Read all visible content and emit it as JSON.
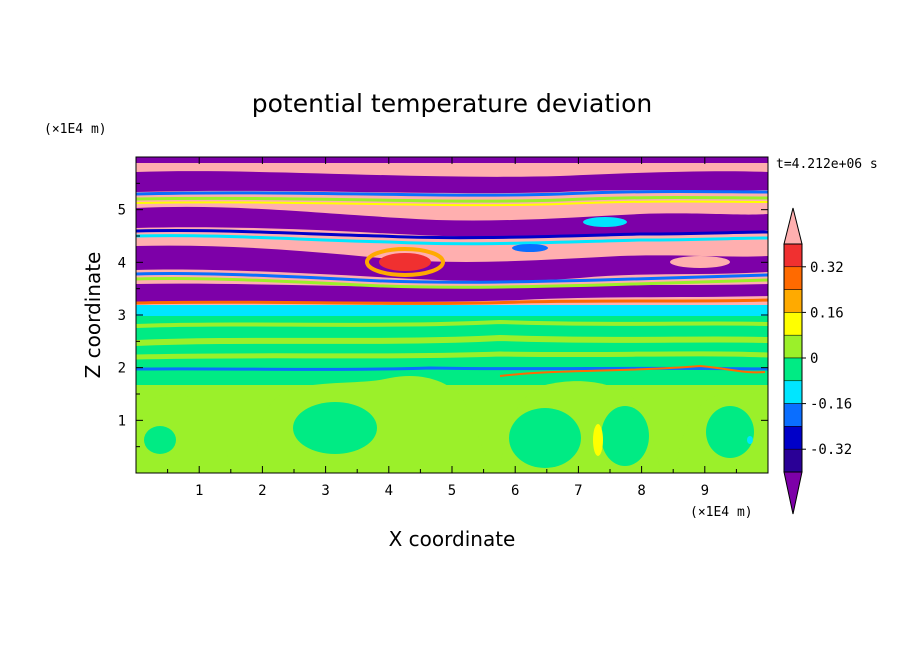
{
  "chart_data": {
    "type": "heatmap",
    "title": "potential temperature deviation",
    "xlabel": "X coordinate",
    "ylabel": "Z coordinate",
    "x_unit": "(×1E4 m)",
    "y_unit": "(×1E4 m)",
    "time_label": "t=4.212e+06 s",
    "xlim": [
      0,
      10
    ],
    "ylim": [
      0,
      6
    ],
    "x_ticks": [
      "1",
      "2",
      "3",
      "4",
      "5",
      "6",
      "7",
      "8",
      "9"
    ],
    "y_ticks": [
      "1",
      "2",
      "3",
      "4",
      "5"
    ],
    "colorbar": {
      "labels": [
        "0.32",
        "0.16",
        "0",
        "-0.16",
        "-0.32"
      ],
      "levels": [
        -0.4,
        -0.32,
        -0.24,
        -0.16,
        -0.08,
        0,
        0.08,
        0.16,
        0.24,
        0.32,
        0.4
      ],
      "colors": [
        "#ffafaf",
        "#f03030",
        "#ff6a00",
        "#ffaa00",
        "#ffff00",
        "#9bf02a",
        "#00eb84",
        "#00e6ff",
        "#0a6eff",
        "#0000c8",
        "#2a0096",
        "#7d00a8"
      ]
    },
    "regions": [
      {
        "z_range": [
          0,
          2
        ],
        "description_value": "near 0 (green / yellow-green)"
      },
      {
        "z_range": [
          2,
          3.2
        ],
        "description_value": "near 0 (green)"
      },
      {
        "z_range": [
          3.2,
          6
        ],
        "description_value": "alternating bands from below -0.4 (purple) to above 0.4 (pink)"
      }
    ]
  }
}
